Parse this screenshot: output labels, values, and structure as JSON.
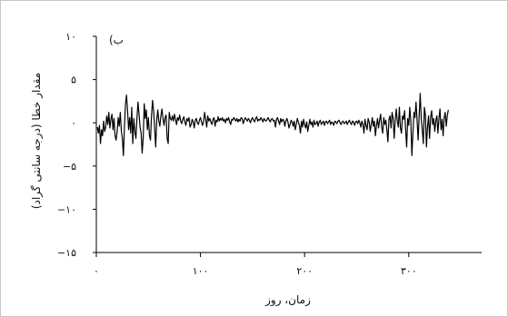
{
  "chart_data": {
    "type": "line",
    "panel_label": "ب)",
    "xlabel": "زمان، روز",
    "ylabel": "مقدار خطا (درجه سانتی گراد)",
    "xlim": [
      0,
      370
    ],
    "ylim": [
      -15,
      10
    ],
    "x_ticks": [
      0,
      100,
      200,
      300
    ],
    "x_tick_labels": [
      "۰",
      "۱۰۰",
      "۲۰۰",
      "۳۰۰"
    ],
    "y_ticks": [
      10,
      5,
      0,
      -5,
      -10,
      -15
    ],
    "y_tick_labels": [
      "۱۰",
      "۵",
      "۰",
      "−۵",
      "−۱۰",
      "−۱۵"
    ],
    "grid": false,
    "line_color": "#000000",
    "series": [
      {
        "values": [
          -0.5,
          -1.2,
          -0.3,
          -2.4,
          -0.8,
          -1.5,
          0.2,
          -1.0,
          -0.5,
          0.8,
          -0.2,
          1.2,
          -0.6,
          0.4,
          1.0,
          -0.8,
          0.5,
          -1.5,
          -2.0,
          -1.0,
          0.6,
          -0.4,
          1.2,
          -0.9,
          -1.8,
          -3.8,
          -0.5,
          2.2,
          3.2,
          1.4,
          -0.8,
          0.6,
          -1.2,
          1.8,
          -2.4,
          0.5,
          -1.0,
          -1.8,
          0.5,
          2.4,
          1.0,
          -0.5,
          -1.2,
          -3.5,
          -1.8,
          2.2,
          0.5,
          1.5,
          -0.8,
          0.6,
          -1.5,
          -2.0,
          0.8,
          2.6,
          1.4,
          -0.6,
          -2.8,
          0.3,
          1.5,
          0.2,
          -0.4,
          0.8,
          1.6,
          0.5,
          -0.3,
          0.6,
          0.9,
          -1.8,
          -2.4,
          1.2,
          0.5,
          0.3,
          0.8,
          0.2,
          1.0,
          0.4,
          -0.2,
          0.6,
          0.3,
          0.9,
          0.2,
          -0.1,
          0.4,
          0.7,
          0.1,
          -0.3,
          0.5,
          0.2,
          0.6,
          -0.5,
          -0.2,
          0.4,
          0.1,
          -0.6,
          0.3,
          0.5,
          0.0,
          -0.2,
          0.3,
          0.6,
          0.1,
          -0.3,
          0.2,
          1.2,
          0.4,
          -0.5,
          0.8,
          0.2,
          0.5,
          0.1,
          -0.2,
          0.4,
          0.6,
          -0.4,
          0.3,
          0.1,
          0.7,
          0.2,
          0.5,
          0.3,
          0.6,
          0.2,
          0.4,
          0.0,
          0.5,
          0.3,
          0.6,
          0.1,
          -0.2,
          0.4,
          0.3,
          0.6,
          0.4,
          0.2,
          0.5,
          0.1,
          0.4,
          0.2,
          0.6,
          0.5,
          -0.1,
          0.3,
          0.6,
          0.4,
          0.2,
          0.5,
          0.3,
          0.0,
          0.4,
          0.6,
          0.3,
          0.1,
          0.5,
          0.7,
          0.2,
          0.4,
          0.3,
          0.6,
          0.4,
          0.1,
          0.5,
          0.3,
          0.2,
          0.4,
          0.6,
          0.3,
          0.1,
          0.4,
          0.5,
          0.2,
          0.3,
          -0.5,
          0.4,
          0.6,
          0.2,
          -0.2,
          0.5,
          0.1,
          0.4,
          0.3,
          -0.4,
          0.2,
          0.5,
          0.1,
          -0.6,
          -0.2,
          0.3,
          0.1,
          -0.4,
          0.2,
          -0.8,
          -0.2,
          0.5,
          0.1,
          -0.3,
          -1.2,
          0.2,
          -0.5,
          0.4,
          -0.2,
          -0.6,
          0.1,
          -1.0,
          -0.3,
          0.4,
          -0.2,
          0.1,
          -0.5,
          0.3,
          -0.2,
          -0.1,
          0.2,
          -0.4,
          0.1,
          0.3,
          -0.2,
          0.0,
          0.2,
          -0.3,
          0.1,
          0.2,
          -0.1,
          0.1,
          0.3,
          -0.2,
          0.1,
          0.0,
          -0.3,
          0.2,
          0.1,
          -0.1,
          0.2,
          0.3,
          0.0,
          -0.2,
          0.1,
          0.2,
          -0.1,
          0.0,
          0.2,
          -0.2,
          0.1,
          0.3,
          0.0,
          -0.2,
          0.2,
          0.1,
          -0.3,
          0.1,
          0.2,
          -0.1,
          0.3,
          0.0,
          -0.5,
          0.2,
          -0.2,
          -1.2,
          0.4,
          -0.3,
          -0.8,
          0.5,
          0.1,
          -1.0,
          -0.2,
          0.6,
          -0.4,
          0.2,
          -1.5,
          -0.3,
          0.5,
          -0.6,
          0.3,
          1.0,
          -0.5,
          -1.2,
          0.6,
          -0.2,
          0.3,
          -0.8,
          -2.2,
          0.4,
          0.8,
          -0.6,
          1.2,
          0.5,
          -1.8,
          0.3,
          1.6,
          0.2,
          -0.5,
          1.8,
          -0.6,
          -1.2,
          0.8,
          0.4,
          1.4,
          -0.8,
          -2.8,
          0.5,
          -0.3,
          1.8,
          0.2,
          -3.8,
          -1.2,
          1.2,
          0.6,
          2.4,
          0.3,
          -2.0,
          0.8,
          3.4,
          0.5,
          -0.8,
          -2.4,
          1.8,
          0.9,
          -2.8,
          -0.5,
          0.8,
          -1.8,
          0.6,
          1.4,
          -0.2,
          0.5,
          -1.0,
          0.3,
          0.8,
          -1.2,
          0.5,
          1.6,
          -0.8,
          0.4,
          -1.5,
          0.6,
          1.2,
          -0.4,
          0.8,
          1.5
        ]
      }
    ]
  }
}
